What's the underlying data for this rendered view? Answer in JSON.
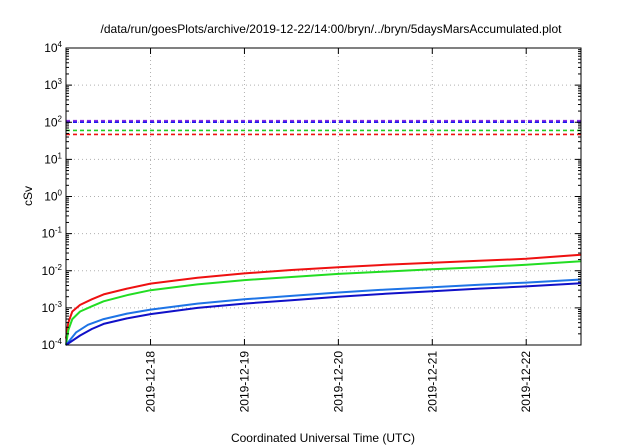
{
  "chart_data": {
    "type": "line",
    "title": "/data/run/goesPlots/archive/2019-12-22/14:00/bryn/../bryn/5daysMarsAccumulated.plot",
    "xlabel": "Coordinated Universal Time (UTC)",
    "ylabel": "cSv",
    "x_scale": "time",
    "y_scale": "log",
    "ylim": [
      0.0001,
      10000
    ],
    "xlim": [
      "2019-12-17T02:24",
      "2019-12-22T14:00"
    ],
    "grid": true,
    "legend": "none",
    "x_ticks": [
      "2019-12-18",
      "2019-12-19",
      "2019-12-20",
      "2019-12-21",
      "2019-12-22"
    ],
    "y_ticks": [
      {
        "base": "10",
        "exp": "-4",
        "value": 0.0001
      },
      {
        "base": "10",
        "exp": "-3",
        "value": 0.001
      },
      {
        "base": "10",
        "exp": "-2",
        "value": 0.01
      },
      {
        "base": "10",
        "exp": "-1",
        "value": 0.1
      },
      {
        "base": "10",
        "exp": "0",
        "value": 1
      },
      {
        "base": "10",
        "exp": "1",
        "value": 10
      },
      {
        "base": "10",
        "exp": "2",
        "value": 100
      },
      {
        "base": "10",
        "exp": "3",
        "value": 1000
      },
      {
        "base": "10",
        "exp": "4",
        "value": 10000
      }
    ],
    "reference_lines": [
      {
        "value": 110,
        "color": "#8a2be2"
      },
      {
        "value": 100,
        "color": "#1a1aee"
      },
      {
        "value": 60,
        "color": "#22cc22"
      },
      {
        "value": 47,
        "color": "#ee1111"
      }
    ],
    "series": [
      {
        "color": "#ee1111",
        "points": [
          [
            "2019-12-17T02:24",
            0.00015
          ],
          [
            "2019-12-17T03:00",
            0.0004
          ],
          [
            "2019-12-17T04:00",
            0.0008
          ],
          [
            "2019-12-17T06:00",
            0.0012
          ],
          [
            "2019-12-17T09:00",
            0.0017
          ],
          [
            "2019-12-17T12:00",
            0.0023
          ],
          [
            "2019-12-17T18:00",
            0.0033
          ],
          [
            "2019-12-18T00:00",
            0.0045
          ],
          [
            "2019-12-18T12:00",
            0.0065
          ],
          [
            "2019-12-19T00:00",
            0.0085
          ],
          [
            "2019-12-19T12:00",
            0.0105
          ],
          [
            "2019-12-20T00:00",
            0.0125
          ],
          [
            "2019-12-20T12:00",
            0.0145
          ],
          [
            "2019-12-21T00:00",
            0.0165
          ],
          [
            "2019-12-21T12:00",
            0.0185
          ],
          [
            "2019-12-22T00:00",
            0.021
          ],
          [
            "2019-12-22T14:00",
            0.027
          ]
        ]
      },
      {
        "color": "#22dd22",
        "points": [
          [
            "2019-12-17T02:24",
            0.0001
          ],
          [
            "2019-12-17T03:00",
            0.00025
          ],
          [
            "2019-12-17T04:00",
            0.0005
          ],
          [
            "2019-12-17T06:00",
            0.0008
          ],
          [
            "2019-12-17T09:00",
            0.0011
          ],
          [
            "2019-12-17T12:00",
            0.0015
          ],
          [
            "2019-12-17T18:00",
            0.0022
          ],
          [
            "2019-12-18T00:00",
            0.003
          ],
          [
            "2019-12-18T12:00",
            0.0043
          ],
          [
            "2019-12-19T00:00",
            0.0056
          ],
          [
            "2019-12-19T12:00",
            0.0068
          ],
          [
            "2019-12-20T00:00",
            0.0082
          ],
          [
            "2019-12-20T12:00",
            0.0095
          ],
          [
            "2019-12-21T00:00",
            0.011
          ],
          [
            "2019-12-21T12:00",
            0.0125
          ],
          [
            "2019-12-22T00:00",
            0.0145
          ],
          [
            "2019-12-22T14:00",
            0.018
          ]
        ]
      },
      {
        "color": "#1e74e6",
        "points": [
          [
            "2019-12-17T02:24",
            0.0001
          ],
          [
            "2019-12-17T05:00",
            0.00022
          ],
          [
            "2019-12-17T08:00",
            0.00035
          ],
          [
            "2019-12-17T12:00",
            0.0005
          ],
          [
            "2019-12-17T18:00",
            0.0007
          ],
          [
            "2019-12-18T00:00",
            0.0009
          ],
          [
            "2019-12-18T12:00",
            0.0013
          ],
          [
            "2019-12-19T00:00",
            0.0017
          ],
          [
            "2019-12-19T12:00",
            0.0021
          ],
          [
            "2019-12-20T00:00",
            0.0026
          ],
          [
            "2019-12-20T12:00",
            0.0031
          ],
          [
            "2019-12-21T00:00",
            0.0036
          ],
          [
            "2019-12-21T12:00",
            0.0042
          ],
          [
            "2019-12-22T00:00",
            0.0048
          ],
          [
            "2019-12-22T14:00",
            0.0058
          ]
        ]
      },
      {
        "color": "#1010c8",
        "points": [
          [
            "2019-12-17T02:24",
            0.0001
          ],
          [
            "2019-12-17T06:00",
            0.00018
          ],
          [
            "2019-12-17T09:00",
            0.00027
          ],
          [
            "2019-12-17T12:00",
            0.00037
          ],
          [
            "2019-12-17T18:00",
            0.00052
          ],
          [
            "2019-12-18T00:00",
            0.00068
          ],
          [
            "2019-12-18T12:00",
            0.001
          ],
          [
            "2019-12-19T00:00",
            0.0013
          ],
          [
            "2019-12-19T12:00",
            0.0016
          ],
          [
            "2019-12-20T00:00",
            0.002
          ],
          [
            "2019-12-20T12:00",
            0.0024
          ],
          [
            "2019-12-21T00:00",
            0.0028
          ],
          [
            "2019-12-21T12:00",
            0.0033
          ],
          [
            "2019-12-22T00:00",
            0.0038
          ],
          [
            "2019-12-22T14:00",
            0.0046
          ]
        ]
      }
    ]
  }
}
